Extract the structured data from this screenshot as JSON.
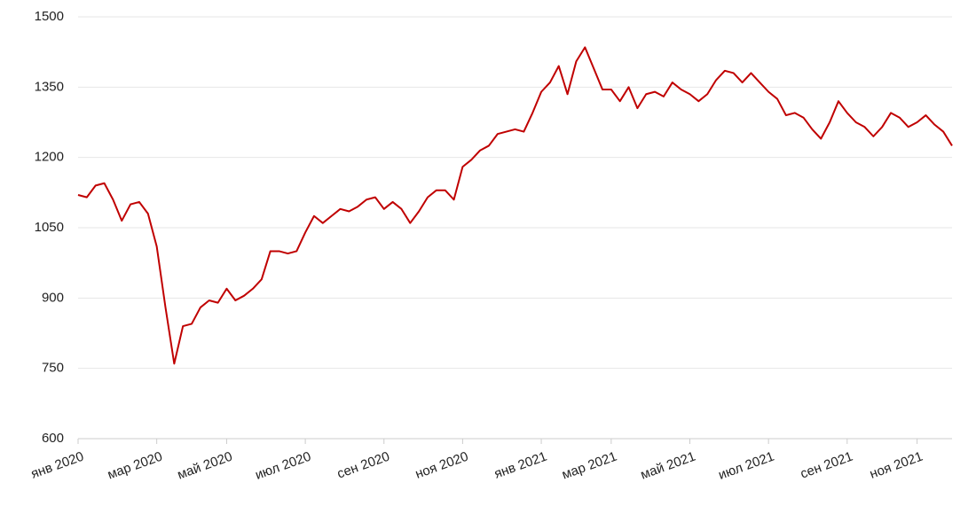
{
  "chart_data": {
    "type": "line",
    "categories": [
      "янв 2020",
      null,
      null,
      null,
      null,
      null,
      null,
      null,
      null,
      "мар 2020",
      null,
      null,
      null,
      null,
      null,
      null,
      null,
      "май 2020",
      null,
      null,
      null,
      null,
      null,
      null,
      null,
      null,
      "июл 2020",
      null,
      null,
      null,
      null,
      null,
      null,
      null,
      null,
      "сен 2020",
      null,
      null,
      null,
      null,
      null,
      null,
      null,
      null,
      "ноя 2020",
      null,
      null,
      null,
      null,
      null,
      null,
      null,
      null,
      "янв 2021",
      null,
      null,
      null,
      null,
      null,
      null,
      null,
      "мар 2021",
      null,
      null,
      null,
      null,
      null,
      null,
      null,
      null,
      "май 2021",
      null,
      null,
      null,
      null,
      null,
      null,
      null,
      null,
      "июл 2021",
      null,
      null,
      null,
      null,
      null,
      null,
      null,
      null,
      "сен 2021",
      null,
      null,
      null,
      null,
      null,
      null,
      null,
      "ноя 2021",
      null,
      null,
      null,
      null
    ],
    "values": [
      1120,
      1115,
      1140,
      1145,
      1110,
      1065,
      1100,
      1105,
      1080,
      1010,
      880,
      760,
      840,
      845,
      880,
      895,
      890,
      920,
      895,
      905,
      920,
      940,
      1000,
      1000,
      995,
      1000,
      1040,
      1075,
      1060,
      1075,
      1090,
      1085,
      1095,
      1110,
      1115,
      1090,
      1105,
      1090,
      1060,
      1085,
      1115,
      1130,
      1130,
      1110,
      1180,
      1195,
      1215,
      1225,
      1250,
      1255,
      1260,
      1255,
      1295,
      1340,
      1360,
      1395,
      1335,
      1405,
      1435,
      1390,
      1345,
      1345,
      1320,
      1350,
      1305,
      1335,
      1340,
      1330,
      1360,
      1345,
      1335,
      1320,
      1335,
      1365,
      1385,
      1380,
      1360,
      1380,
      1360,
      1340,
      1325,
      1290,
      1295,
      1285,
      1260,
      1240,
      1275,
      1320,
      1295,
      1275,
      1265,
      1245,
      1265,
      1295,
      1285,
      1265,
      1275,
      1290,
      1270,
      1255,
      1225
    ],
    "color": "#c00000",
    "ylim": [
      600,
      1500
    ],
    "yticks": [
      600,
      750,
      900,
      1050,
      1200,
      1350,
      1500
    ],
    "grid": true
  }
}
